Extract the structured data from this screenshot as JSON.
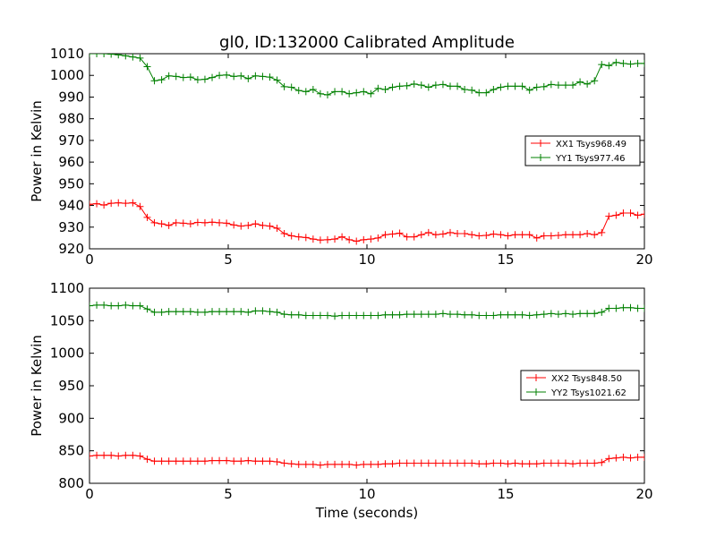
{
  "figure": {
    "title": "gl0, ID:132000 Calibrated Amplitude",
    "xlabel": "Time (seconds)"
  },
  "colors": {
    "xx": "#ff0000",
    "yy": "#008000",
    "axes": "#000000",
    "background": "#ffffff"
  },
  "chart_data": [
    {
      "type": "line",
      "title": "gl0, ID:132000 Calibrated Amplitude",
      "xlabel": "",
      "ylabel": "Power in Kelvin",
      "xlim": [
        0,
        20
      ],
      "ylim": [
        920,
        1010
      ],
      "xticks": [
        0,
        5,
        10,
        15,
        20
      ],
      "yticks": [
        920,
        930,
        940,
        950,
        960,
        970,
        980,
        990,
        1000,
        1010
      ],
      "grid": false,
      "legend_position": "right",
      "series": [
        {
          "name": "XX1 Tsys968.49",
          "color": "#ff0000",
          "x": [
            0.0,
            0.26,
            0.52,
            0.78,
            1.04,
            1.3,
            1.56,
            1.82,
            2.08,
            2.34,
            2.6,
            2.86,
            3.12,
            3.38,
            3.64,
            3.9,
            4.16,
            4.42,
            4.68,
            4.94,
            5.2,
            5.46,
            5.72,
            5.98,
            6.24,
            6.5,
            6.76,
            7.02,
            7.28,
            7.54,
            7.8,
            8.06,
            8.32,
            8.58,
            8.84,
            9.1,
            9.36,
            9.62,
            9.88,
            10.14,
            10.4,
            10.66,
            10.92,
            11.18,
            11.44,
            11.7,
            11.96,
            12.22,
            12.48,
            12.74,
            13.0,
            13.26,
            13.52,
            13.78,
            14.04,
            14.3,
            14.56,
            14.82,
            15.08,
            15.34,
            15.6,
            15.86,
            16.12,
            16.38,
            16.64,
            16.9,
            17.16,
            17.42,
            17.68,
            17.94,
            18.2,
            18.46,
            18.72,
            18.98,
            19.24,
            19.5,
            19.76,
            20.0
          ],
          "y": [
            940.5,
            940.8,
            940.2,
            941.0,
            941.2,
            941.0,
            941.2,
            939.5,
            934.5,
            932.0,
            931.5,
            930.8,
            932.0,
            931.8,
            931.5,
            932.2,
            932.0,
            932.3,
            932.0,
            931.8,
            931.0,
            930.5,
            930.8,
            931.5,
            930.8,
            930.5,
            929.5,
            927.0,
            926.0,
            925.5,
            925.2,
            924.5,
            924.0,
            924.2,
            924.5,
            925.5,
            924.2,
            923.5,
            924.2,
            924.5,
            925.0,
            926.5,
            926.8,
            927.2,
            925.5,
            925.5,
            926.5,
            927.5,
            926.5,
            926.8,
            927.5,
            927.0,
            927.0,
            926.5,
            926.0,
            926.2,
            926.8,
            926.5,
            926.0,
            926.5,
            926.5,
            926.5,
            925.0,
            926.0,
            926.0,
            926.2,
            926.5,
            926.5,
            926.5,
            927.0,
            926.5,
            927.5,
            935.0,
            935.5,
            936.5,
            936.5,
            935.5,
            936.0
          ]
        },
        {
          "name": "YY1 Tsys977.46",
          "color": "#008000",
          "x": [
            0.0,
            0.26,
            0.52,
            0.78,
            1.04,
            1.3,
            1.56,
            1.82,
            2.08,
            2.34,
            2.6,
            2.86,
            3.12,
            3.38,
            3.64,
            3.9,
            4.16,
            4.42,
            4.68,
            4.94,
            5.2,
            5.46,
            5.72,
            5.98,
            6.24,
            6.5,
            6.76,
            7.02,
            7.28,
            7.54,
            7.8,
            8.06,
            8.32,
            8.58,
            8.84,
            9.1,
            9.36,
            9.62,
            9.88,
            10.14,
            10.4,
            10.66,
            10.92,
            11.18,
            11.44,
            11.7,
            11.96,
            12.22,
            12.48,
            12.74,
            13.0,
            13.26,
            13.52,
            13.78,
            14.04,
            14.3,
            14.56,
            14.82,
            15.08,
            15.34,
            15.6,
            15.86,
            16.12,
            16.38,
            16.64,
            16.9,
            17.16,
            17.42,
            17.68,
            17.94,
            18.2,
            18.46,
            18.72,
            18.98,
            19.24,
            19.5,
            19.76,
            20.0
          ],
          "y": [
            1010.0,
            1010.0,
            1010.0,
            1009.8,
            1009.5,
            1009.0,
            1008.5,
            1008.0,
            1004.0,
            997.5,
            998.0,
            999.8,
            999.5,
            999.0,
            999.2,
            998.0,
            998.2,
            999.0,
            1000.0,
            1000.2,
            999.5,
            999.8,
            998.5,
            999.8,
            999.5,
            999.2,
            997.8,
            994.8,
            994.5,
            993.0,
            992.5,
            993.5,
            991.5,
            991.0,
            992.5,
            992.5,
            991.5,
            992.0,
            992.5,
            991.5,
            994.0,
            993.5,
            994.5,
            995.0,
            995.2,
            996.0,
            995.5,
            994.5,
            995.5,
            995.8,
            995.0,
            995.0,
            993.5,
            993.2,
            992.0,
            992.0,
            993.5,
            994.5,
            995.0,
            995.0,
            995.0,
            993.2,
            994.5,
            994.8,
            995.8,
            995.5,
            995.5,
            995.5,
            997.0,
            996.0,
            997.5,
            1005.0,
            1004.5,
            1006.0,
            1005.5,
            1005.2,
            1005.5,
            1005.5
          ]
        }
      ]
    },
    {
      "type": "line",
      "title": "",
      "xlabel": "Time (seconds)",
      "ylabel": "Power in Kelvin",
      "xlim": [
        0,
        20
      ],
      "ylim": [
        800,
        1100
      ],
      "xticks": [
        0,
        5,
        10,
        15,
        20
      ],
      "yticks": [
        800,
        850,
        900,
        950,
        1000,
        1050,
        1100
      ],
      "grid": false,
      "legend_position": "right",
      "series": [
        {
          "name": "XX2 Tsys848.50",
          "color": "#ff0000",
          "x": [
            0.0,
            0.26,
            0.52,
            0.78,
            1.04,
            1.3,
            1.56,
            1.82,
            2.08,
            2.34,
            2.6,
            2.86,
            3.12,
            3.38,
            3.64,
            3.9,
            4.16,
            4.42,
            4.68,
            4.94,
            5.2,
            5.46,
            5.72,
            5.98,
            6.24,
            6.5,
            6.76,
            7.02,
            7.28,
            7.54,
            7.8,
            8.06,
            8.32,
            8.58,
            8.84,
            9.1,
            9.36,
            9.62,
            9.88,
            10.14,
            10.4,
            10.66,
            10.92,
            11.18,
            11.44,
            11.7,
            11.96,
            12.22,
            12.48,
            12.74,
            13.0,
            13.26,
            13.52,
            13.78,
            14.04,
            14.3,
            14.56,
            14.82,
            15.08,
            15.34,
            15.6,
            15.86,
            16.12,
            16.38,
            16.64,
            16.9,
            17.16,
            17.42,
            17.68,
            17.94,
            18.2,
            18.46,
            18.72,
            18.98,
            19.24,
            19.5,
            19.76,
            20.0
          ],
          "y": [
            842,
            843,
            843,
            843,
            842,
            843,
            843,
            842,
            837,
            834,
            834,
            834,
            834,
            834,
            834,
            834,
            834,
            835,
            835,
            835,
            834,
            834,
            835,
            834,
            834,
            834,
            833,
            831,
            830,
            829,
            829,
            829,
            828,
            829,
            829,
            829,
            829,
            828,
            829,
            829,
            829,
            830,
            830,
            831,
            831,
            831,
            831,
            831,
            831,
            831,
            831,
            831,
            831,
            831,
            830,
            830,
            831,
            831,
            830,
            831,
            830,
            830,
            830,
            831,
            831,
            831,
            831,
            830,
            831,
            831,
            831,
            832,
            838,
            839,
            840,
            839,
            840,
            840
          ]
        },
        {
          "name": "YY2 Tsys1021.62",
          "color": "#008000",
          "x": [
            0.0,
            0.26,
            0.52,
            0.78,
            1.04,
            1.3,
            1.56,
            1.82,
            2.08,
            2.34,
            2.6,
            2.86,
            3.12,
            3.38,
            3.64,
            3.9,
            4.16,
            4.42,
            4.68,
            4.94,
            5.2,
            5.46,
            5.72,
            5.98,
            6.24,
            6.5,
            6.76,
            7.02,
            7.28,
            7.54,
            7.8,
            8.06,
            8.32,
            8.58,
            8.84,
            9.1,
            9.36,
            9.62,
            9.88,
            10.14,
            10.4,
            10.66,
            10.92,
            11.18,
            11.44,
            11.7,
            11.96,
            12.22,
            12.48,
            12.74,
            13.0,
            13.26,
            13.52,
            13.78,
            14.04,
            14.3,
            14.56,
            14.82,
            15.08,
            15.34,
            15.6,
            15.86,
            16.12,
            16.38,
            16.64,
            16.9,
            17.16,
            17.42,
            17.68,
            17.94,
            18.2,
            18.46,
            18.72,
            18.98,
            19.24,
            19.5,
            19.76,
            20.0
          ],
          "y": [
            1073,
            1074,
            1074,
            1073,
            1073,
            1074,
            1073,
            1073,
            1068,
            1063,
            1063,
            1064,
            1064,
            1064,
            1064,
            1063,
            1063,
            1064,
            1064,
            1064,
            1064,
            1064,
            1063,
            1065,
            1065,
            1064,
            1063,
            1060,
            1059,
            1059,
            1058,
            1058,
            1058,
            1058,
            1057,
            1058,
            1058,
            1058,
            1058,
            1058,
            1058,
            1059,
            1059,
            1059,
            1060,
            1060,
            1060,
            1060,
            1060,
            1061,
            1060,
            1060,
            1059,
            1059,
            1058,
            1058,
            1058,
            1059,
            1059,
            1059,
            1059,
            1058,
            1059,
            1060,
            1061,
            1060,
            1061,
            1060,
            1061,
            1061,
            1061,
            1063,
            1069,
            1069,
            1070,
            1070,
            1069,
            1069
          ]
        }
      ]
    }
  ]
}
